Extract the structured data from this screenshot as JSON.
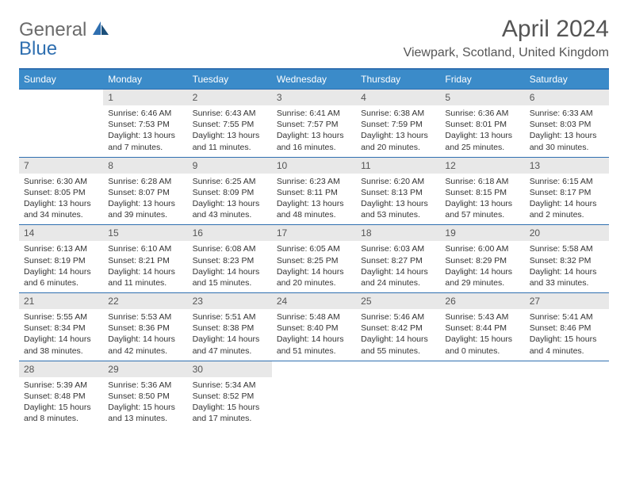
{
  "logo": {
    "line1": "General",
    "line2": "Blue"
  },
  "title": "April 2024",
  "location": "Viewpark, Scotland, United Kingdom",
  "colors": {
    "header_bar": "#3b8bc9",
    "border": "#2f6fb0",
    "daynum_bg": "#e8e8e8",
    "text_dark": "#333333",
    "text_med": "#555555",
    "logo_gray": "#6b6b6b",
    "logo_blue": "#2f6fb0"
  },
  "weekdays": [
    "Sunday",
    "Monday",
    "Tuesday",
    "Wednesday",
    "Thursday",
    "Friday",
    "Saturday"
  ],
  "weeks": [
    [
      null,
      {
        "n": "1",
        "sr": "6:46 AM",
        "ss": "7:53 PM",
        "dl": "13 hours and 7 minutes."
      },
      {
        "n": "2",
        "sr": "6:43 AM",
        "ss": "7:55 PM",
        "dl": "13 hours and 11 minutes."
      },
      {
        "n": "3",
        "sr": "6:41 AM",
        "ss": "7:57 PM",
        "dl": "13 hours and 16 minutes."
      },
      {
        "n": "4",
        "sr": "6:38 AM",
        "ss": "7:59 PM",
        "dl": "13 hours and 20 minutes."
      },
      {
        "n": "5",
        "sr": "6:36 AM",
        "ss": "8:01 PM",
        "dl": "13 hours and 25 minutes."
      },
      {
        "n": "6",
        "sr": "6:33 AM",
        "ss": "8:03 PM",
        "dl": "13 hours and 30 minutes."
      }
    ],
    [
      {
        "n": "7",
        "sr": "6:30 AM",
        "ss": "8:05 PM",
        "dl": "13 hours and 34 minutes."
      },
      {
        "n": "8",
        "sr": "6:28 AM",
        "ss": "8:07 PM",
        "dl": "13 hours and 39 minutes."
      },
      {
        "n": "9",
        "sr": "6:25 AM",
        "ss": "8:09 PM",
        "dl": "13 hours and 43 minutes."
      },
      {
        "n": "10",
        "sr": "6:23 AM",
        "ss": "8:11 PM",
        "dl": "13 hours and 48 minutes."
      },
      {
        "n": "11",
        "sr": "6:20 AM",
        "ss": "8:13 PM",
        "dl": "13 hours and 53 minutes."
      },
      {
        "n": "12",
        "sr": "6:18 AM",
        "ss": "8:15 PM",
        "dl": "13 hours and 57 minutes."
      },
      {
        "n": "13",
        "sr": "6:15 AM",
        "ss": "8:17 PM",
        "dl": "14 hours and 2 minutes."
      }
    ],
    [
      {
        "n": "14",
        "sr": "6:13 AM",
        "ss": "8:19 PM",
        "dl": "14 hours and 6 minutes."
      },
      {
        "n": "15",
        "sr": "6:10 AM",
        "ss": "8:21 PM",
        "dl": "14 hours and 11 minutes."
      },
      {
        "n": "16",
        "sr": "6:08 AM",
        "ss": "8:23 PM",
        "dl": "14 hours and 15 minutes."
      },
      {
        "n": "17",
        "sr": "6:05 AM",
        "ss": "8:25 PM",
        "dl": "14 hours and 20 minutes."
      },
      {
        "n": "18",
        "sr": "6:03 AM",
        "ss": "8:27 PM",
        "dl": "14 hours and 24 minutes."
      },
      {
        "n": "19",
        "sr": "6:00 AM",
        "ss": "8:29 PM",
        "dl": "14 hours and 29 minutes."
      },
      {
        "n": "20",
        "sr": "5:58 AM",
        "ss": "8:32 PM",
        "dl": "14 hours and 33 minutes."
      }
    ],
    [
      {
        "n": "21",
        "sr": "5:55 AM",
        "ss": "8:34 PM",
        "dl": "14 hours and 38 minutes."
      },
      {
        "n": "22",
        "sr": "5:53 AM",
        "ss": "8:36 PM",
        "dl": "14 hours and 42 minutes."
      },
      {
        "n": "23",
        "sr": "5:51 AM",
        "ss": "8:38 PM",
        "dl": "14 hours and 47 minutes."
      },
      {
        "n": "24",
        "sr": "5:48 AM",
        "ss": "8:40 PM",
        "dl": "14 hours and 51 minutes."
      },
      {
        "n": "25",
        "sr": "5:46 AM",
        "ss": "8:42 PM",
        "dl": "14 hours and 55 minutes."
      },
      {
        "n": "26",
        "sr": "5:43 AM",
        "ss": "8:44 PM",
        "dl": "15 hours and 0 minutes."
      },
      {
        "n": "27",
        "sr": "5:41 AM",
        "ss": "8:46 PM",
        "dl": "15 hours and 4 minutes."
      }
    ],
    [
      {
        "n": "28",
        "sr": "5:39 AM",
        "ss": "8:48 PM",
        "dl": "15 hours and 8 minutes."
      },
      {
        "n": "29",
        "sr": "5:36 AM",
        "ss": "8:50 PM",
        "dl": "15 hours and 13 minutes."
      },
      {
        "n": "30",
        "sr": "5:34 AM",
        "ss": "8:52 PM",
        "dl": "15 hours and 17 minutes."
      },
      null,
      null,
      null,
      null
    ]
  ],
  "labels": {
    "sunrise": "Sunrise:",
    "sunset": "Sunset:",
    "daylight": "Daylight:"
  }
}
